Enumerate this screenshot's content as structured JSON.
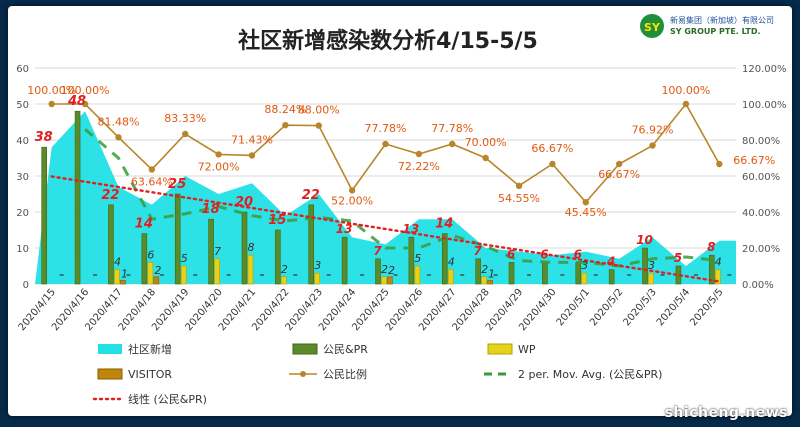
{
  "watermark": "shicheng.news",
  "logo": {
    "line1": "新易集团（新加坡）有限公司",
    "line2": "SY GROUP PTE. LTD."
  },
  "colors": {
    "area": "#22e0e6",
    "pr": "#5a8a2a",
    "wp": "#e6d21c",
    "visitor": "#c0860c",
    "ratio": "#b8862a",
    "ratio_label": "#e05a10",
    "trend": "#e02020",
    "movavg": "#3a9a3a",
    "title": "#222222"
  },
  "chart_data": {
    "type": "bar",
    "title": "社区新增感染数分析4/15-5/5",
    "categories": [
      "2020/4/15",
      "2020/4/16",
      "2020/4/17",
      "2020/4/18",
      "2020/4/19",
      "2020/4/20",
      "2020/4/21",
      "2020/4/22",
      "2020/4/23",
      "2020/4/24",
      "2020/4/25",
      "2020/4/26",
      "2020/4/27",
      "2020/4/28",
      "2020/4/29",
      "2020/4/30",
      "2020/5/1",
      "2020/5/2",
      "2020/5/3",
      "2020/5/4",
      "2020/5/5"
    ],
    "ylim": [
      0,
      60
    ],
    "yticks": [
      "0",
      "10",
      "20",
      "30",
      "40",
      "50",
      "60"
    ],
    "y2lim": [
      0,
      120
    ],
    "y2ticks": [
      "0.00%",
      "20.00%",
      "40.00%",
      "60.00%",
      "80.00%",
      "100.00%",
      "120.00%"
    ],
    "series": [
      {
        "name": "社区新增",
        "type": "area",
        "values": [
          38,
          48,
          27,
          22,
          30,
          25,
          28,
          19,
          25,
          13,
          11,
          18,
          18,
          10,
          9,
          8,
          9,
          7,
          13,
          5,
          12
        ]
      },
      {
        "name": "公民&PR",
        "type": "bar",
        "values": [
          38,
          48,
          22,
          14,
          25,
          18,
          20,
          15,
          22,
          13,
          7,
          13,
          14,
          7,
          6,
          6,
          6,
          4,
          10,
          5,
          8
        ]
      },
      {
        "name": "WP",
        "type": "bar",
        "values": [
          0,
          0,
          4,
          6,
          5,
          7,
          8,
          2,
          3,
          0,
          2,
          5,
          4,
          2,
          0,
          0,
          3,
          0,
          3,
          0,
          4
        ]
      },
      {
        "name": "VISITOR",
        "type": "bar",
        "values": [
          0,
          0,
          1,
          2,
          0,
          0,
          0,
          0,
          0,
          0,
          2,
          0,
          0,
          1,
          0,
          0,
          0,
          0,
          0,
          0,
          0
        ]
      },
      {
        "name": "公民比例",
        "type": "line",
        "axis": "secondary",
        "values": [
          100,
          100,
          81.48,
          63.64,
          83.33,
          72,
          71.43,
          88.24,
          88,
          52,
          77.78,
          72.22,
          77.78,
          70,
          54.55,
          66.67,
          45.45,
          66.67,
          76.92,
          100,
          66.67
        ]
      },
      {
        "name": "2 per. Mov. Avg. (公民&PR)",
        "type": "moving-average"
      },
      {
        "name": "线性 (公民&PR)",
        "type": "trendline"
      }
    ],
    "pr_labels": [
      "38",
      "48",
      "22",
      "14",
      "25",
      "18",
      "20",
      "15",
      "22",
      "13",
      "7",
      "13",
      "14",
      "7",
      "6",
      "6",
      "6",
      "4",
      "10",
      "5",
      "8"
    ],
    "pr_label_red": [
      true,
      true,
      true,
      true,
      true,
      true,
      true,
      true,
      true,
      true,
      true,
      true,
      true,
      true,
      true,
      true,
      true,
      true,
      true,
      true,
      true
    ],
    "wp_labels": [
      "",
      "",
      "4",
      "6",
      "5",
      "7",
      "8",
      "2",
      "3",
      "",
      "2",
      "5",
      "4",
      "2",
      "",
      "",
      "3",
      "",
      "3",
      "",
      "4"
    ],
    "visitor_labels": [
      "",
      "",
      "1",
      "2",
      "",
      "",
      "",
      "",
      "",
      "",
      "2",
      "",
      "",
      "1",
      "",
      "",
      "",
      "",
      "",
      "",
      ""
    ],
    "ratio_labels": [
      "100.00%",
      "100.00%",
      "81.48%",
      "63.64%",
      "83.33%",
      "72.00%",
      "71.43%",
      "88.24%",
      "88.00%",
      "52.00%",
      "77.78%",
      "72.22%",
      "77.78%",
      "70.00%",
      "54.55%",
      "66.67%",
      "45.45%",
      "66.67%",
      "76.92%",
      "100.00%",
      "66.67%"
    ],
    "legend": [
      {
        "key": "area",
        "label": "社区新增"
      },
      {
        "key": "pr",
        "label": "公民&PR"
      },
      {
        "key": "wp",
        "label": "WP"
      },
      {
        "key": "visitor",
        "label": "VISITOR"
      },
      {
        "key": "ratio",
        "label": "公民比例"
      },
      {
        "key": "movavg",
        "label": "2 per. Mov. Avg. (公民&PR)"
      },
      {
        "key": "trend",
        "label": "线性 (公民&PR)"
      }
    ]
  }
}
